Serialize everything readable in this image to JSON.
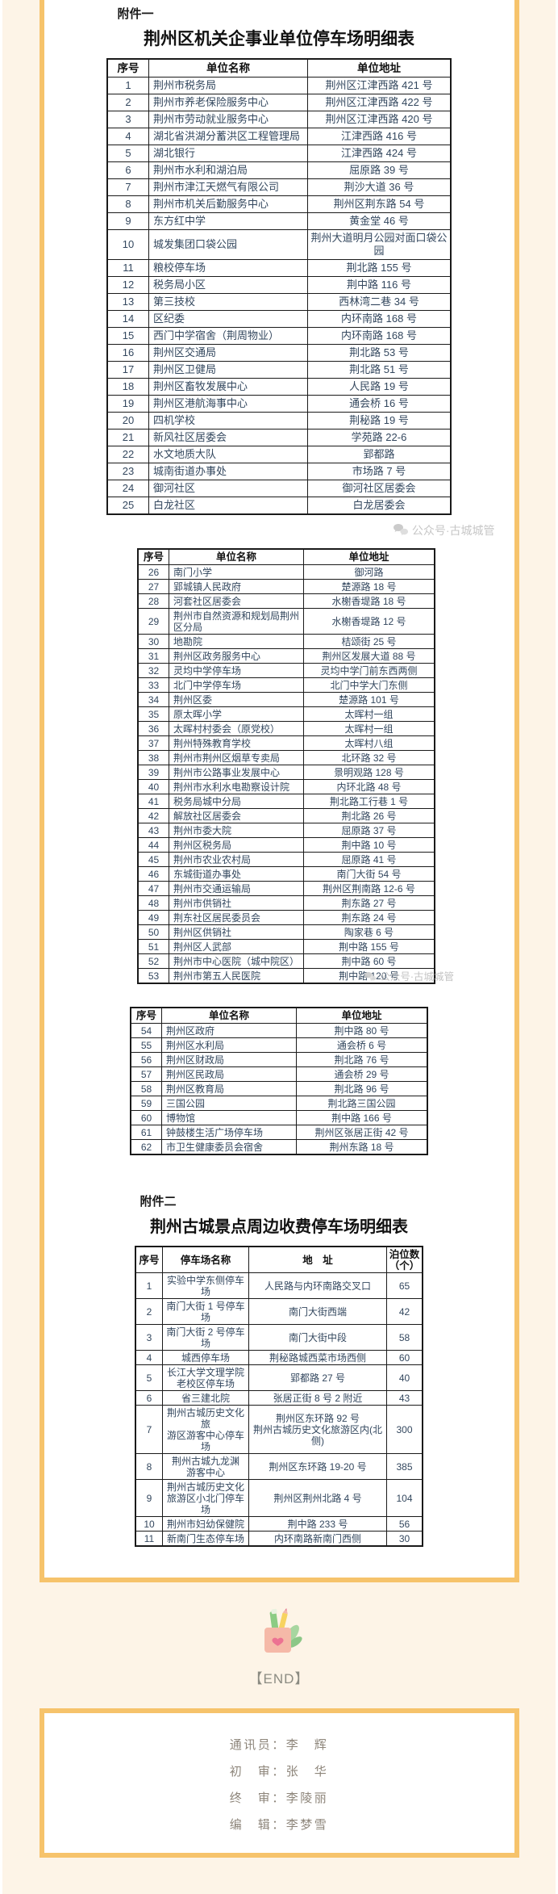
{
  "watermark": {
    "text": "公众号·古城城管"
  },
  "attachment1": {
    "label": "附件一",
    "title": "荆州区机关企事业单位停车场明细表",
    "tables": [
      {
        "columns": [
          "序号",
          "单位名称",
          "单位地址"
        ],
        "rows": [
          [
            "1",
            "荆州市税务局",
            "荆州区江津西路 421 号"
          ],
          [
            "2",
            "荆州市养老保险服务中心",
            "荆州区江津西路 422 号"
          ],
          [
            "3",
            "荆州市劳动就业服务中心",
            "荆州区江津西路 420 号"
          ],
          [
            "4",
            "湖北省洪湖分蓄洪区工程管理局",
            "江津西路 416 号"
          ],
          [
            "5",
            "湖北银行",
            "江津西路 424 号"
          ],
          [
            "6",
            "荆州市水利和湖泊局",
            "屈原路 39 号"
          ],
          [
            "7",
            "荆州市津江天燃气有限公司",
            "荆沙大道 36 号"
          ],
          [
            "8",
            "荆州市机关后勤服务中心",
            "荆州区荆东路 54 号"
          ],
          [
            "9",
            "东方红中学",
            "黄金堂 46 号"
          ],
          [
            "10",
            "城发集团口袋公园",
            "荆州大道明月公园对面口袋公园"
          ],
          [
            "11",
            "粮校停车场",
            "荆北路 155 号"
          ],
          [
            "12",
            "税务局小区",
            "荆中路 116 号"
          ],
          [
            "13",
            "第三技校",
            "西林湾二巷 34 号"
          ],
          [
            "14",
            "区纪委",
            "内环南路 168 号"
          ],
          [
            "15",
            "西门中学宿舍（荆周物业）",
            "内环南路 168 号"
          ],
          [
            "16",
            "荆州区交通局",
            "荆北路 53 号"
          ],
          [
            "17",
            "荆州区卫健局",
            "荆北路 51 号"
          ],
          [
            "18",
            "荆州区畜牧发展中心",
            "人民路 19 号"
          ],
          [
            "19",
            "荆州区港航海事中心",
            "通会桥 16 号"
          ],
          [
            "20",
            "四机学校",
            "荆秘路 19 号"
          ],
          [
            "21",
            "新风社区居委会",
            "学苑路 22-6"
          ],
          [
            "22",
            "水文地质大队",
            "郢都路"
          ],
          [
            "23",
            "城南街道办事处",
            "市场路 7 号"
          ],
          [
            "24",
            "御河社区",
            "御河社区居委会"
          ],
          [
            "25",
            "白龙社区",
            "白龙居委会"
          ]
        ]
      },
      {
        "columns": [
          "序号",
          "单位名称",
          "单位地址"
        ],
        "rows": [
          [
            "26",
            "南门小学",
            "御河路"
          ],
          [
            "27",
            "郢城镇人民政府",
            "楚源路 18 号"
          ],
          [
            "28",
            "河套社区居委会",
            "水榭香堤路 18 号"
          ],
          [
            "29",
            "荆州市自然资源和规划局荆州区分局",
            "水榭香堤路 12 号"
          ],
          [
            "30",
            "地勘院",
            "桔颂街 25 号"
          ],
          [
            "31",
            "荆州区政务服务中心",
            "荆州区发展大道 88 号"
          ],
          [
            "32",
            "灵均中学停车场",
            "灵均中学门前东西两侧"
          ],
          [
            "33",
            "北门中学停车场",
            "北门中学大门东侧"
          ],
          [
            "34",
            "荆州区委",
            "楚源路 101 号"
          ],
          [
            "35",
            "原太晖小学",
            "太晖村一组"
          ],
          [
            "36",
            "太晖村村委会（原党校）",
            "太晖村一组"
          ],
          [
            "37",
            "荆州特殊教育学校",
            "太晖村八组"
          ],
          [
            "38",
            "荆州市荆州区烟草专卖局",
            "北环路 32 号"
          ],
          [
            "39",
            "荆州市公路事业发展中心",
            "景明观路 128 号"
          ],
          [
            "40",
            "荆州市水利水电勘察设计院",
            "内环北路 48 号"
          ],
          [
            "41",
            "税务局城中分局",
            "荆北路工行巷 1 号"
          ],
          [
            "42",
            "解放社区居委会",
            "荆北路 26 号"
          ],
          [
            "43",
            "荆州市委大院",
            "屈原路 37 号"
          ],
          [
            "44",
            "荆州区税务局",
            "荆中路 10 号"
          ],
          [
            "45",
            "荆州市农业农村局",
            "屈原路 41 号"
          ],
          [
            "46",
            "东城街道办事处",
            "南门大街 54 号"
          ],
          [
            "47",
            "荆州市交通运输局",
            "荆州区荆南路 12-6 号"
          ],
          [
            "48",
            "荆州市供销社",
            "荆东路 27 号"
          ],
          [
            "49",
            "荆东社区居民委员会",
            "荆东路 24 号"
          ],
          [
            "50",
            "荆州区供销社",
            "陶家巷 6 号"
          ],
          [
            "51",
            "荆州区人武部",
            "荆中路 155 号"
          ],
          [
            "52",
            "荆州市中心医院（城中院区）",
            "荆中路 60 号"
          ],
          [
            "53",
            "荆州市第五人民医院",
            "荆中路 120 号"
          ]
        ]
      },
      {
        "columns": [
          "序号",
          "单位名称",
          "单位地址"
        ],
        "rows": [
          [
            "54",
            "荆州区政府",
            "荆中路 80 号"
          ],
          [
            "55",
            "荆州区水利局",
            "通会桥 6 号"
          ],
          [
            "56",
            "荆州区财政局",
            "荆北路 76 号"
          ],
          [
            "57",
            "荆州区民政局",
            "通会桥 29 号"
          ],
          [
            "58",
            "荆州区教育局",
            "荆北路 96 号"
          ],
          [
            "59",
            "三国公园",
            "荆北路三国公园"
          ],
          [
            "60",
            "博物馆",
            "荆中路 166 号"
          ],
          [
            "61",
            "钟鼓楼生活广场停车场",
            "荆州区张居正街 42 号"
          ],
          [
            "62",
            "市卫生健康委员会宿舍",
            "荆州东路 18 号"
          ]
        ]
      }
    ]
  },
  "attachment2": {
    "label": "附件二",
    "title": "荆州古城景点周边收费停车场明细表",
    "table": {
      "columns": [
        "序号",
        "停车场名称",
        "地　址",
        "泊位数\n（个）"
      ],
      "rows": [
        [
          "1",
          "实验中学东侧停车场",
          "人民路与内环南路交叉口",
          "65"
        ],
        [
          "2",
          "南门大街 1 号停车场",
          "南门大街西端",
          "42"
        ],
        [
          "3",
          "南门大街 2 号停车场",
          "南门大街中段",
          "58"
        ],
        [
          "4",
          "城西停车场",
          "荆秘路城西菜市场西侧",
          "60"
        ],
        [
          "5",
          "长江大学文理学院\n老校区停车场",
          "郢都路 27 号",
          "40"
        ],
        [
          "6",
          "省三建北院",
          "张居正街 8 号 2 附近",
          "43"
        ],
        [
          "7",
          "荆州古城历史文化旅\n游区游客中心停车场",
          "荆州区东环路 92 号\n荆州古城历史文化旅游区内(北侧)",
          "300"
        ],
        [
          "8",
          "荆州古城九龙渊\n游客中心",
          "荆州区东环路 19-20 号",
          "385"
        ],
        [
          "9",
          "荆州古城历史文化\n旅游区小北门停车场",
          "荆州区荆州北路 4 号",
          "104"
        ],
        [
          "10",
          "荆州市妇幼保健院",
          "荆中路 233 号",
          "56"
        ],
        [
          "11",
          "新南门生态停车场",
          "内环南路新南门西侧",
          "30"
        ]
      ]
    }
  },
  "end_marker": "【END】",
  "credits": {
    "lines": [
      "通讯员：李　辉",
      "初　审：张　华",
      "终　审：李陵丽",
      "编　辑：李梦雪"
    ]
  }
}
